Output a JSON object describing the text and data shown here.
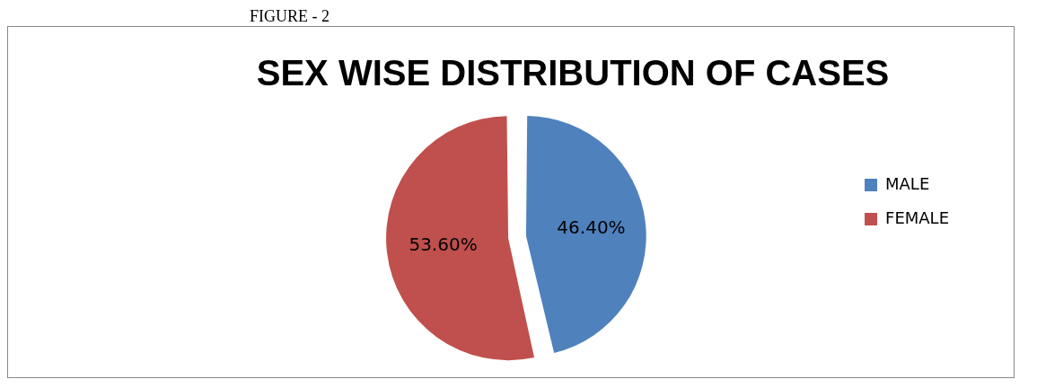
{
  "chart_data": {
    "type": "pie",
    "title": "SEX WISE DISTRIBUTION OF CASES",
    "annotations": [
      "FIGURE - 2"
    ],
    "categories": [
      "MALE",
      "FEMALE"
    ],
    "values": [
      46.4,
      53.6
    ],
    "colors": [
      "#4f81bd",
      "#c0504d"
    ],
    "value_labels": [
      "46.40%",
      "53.60%"
    ],
    "legend": "right"
  }
}
